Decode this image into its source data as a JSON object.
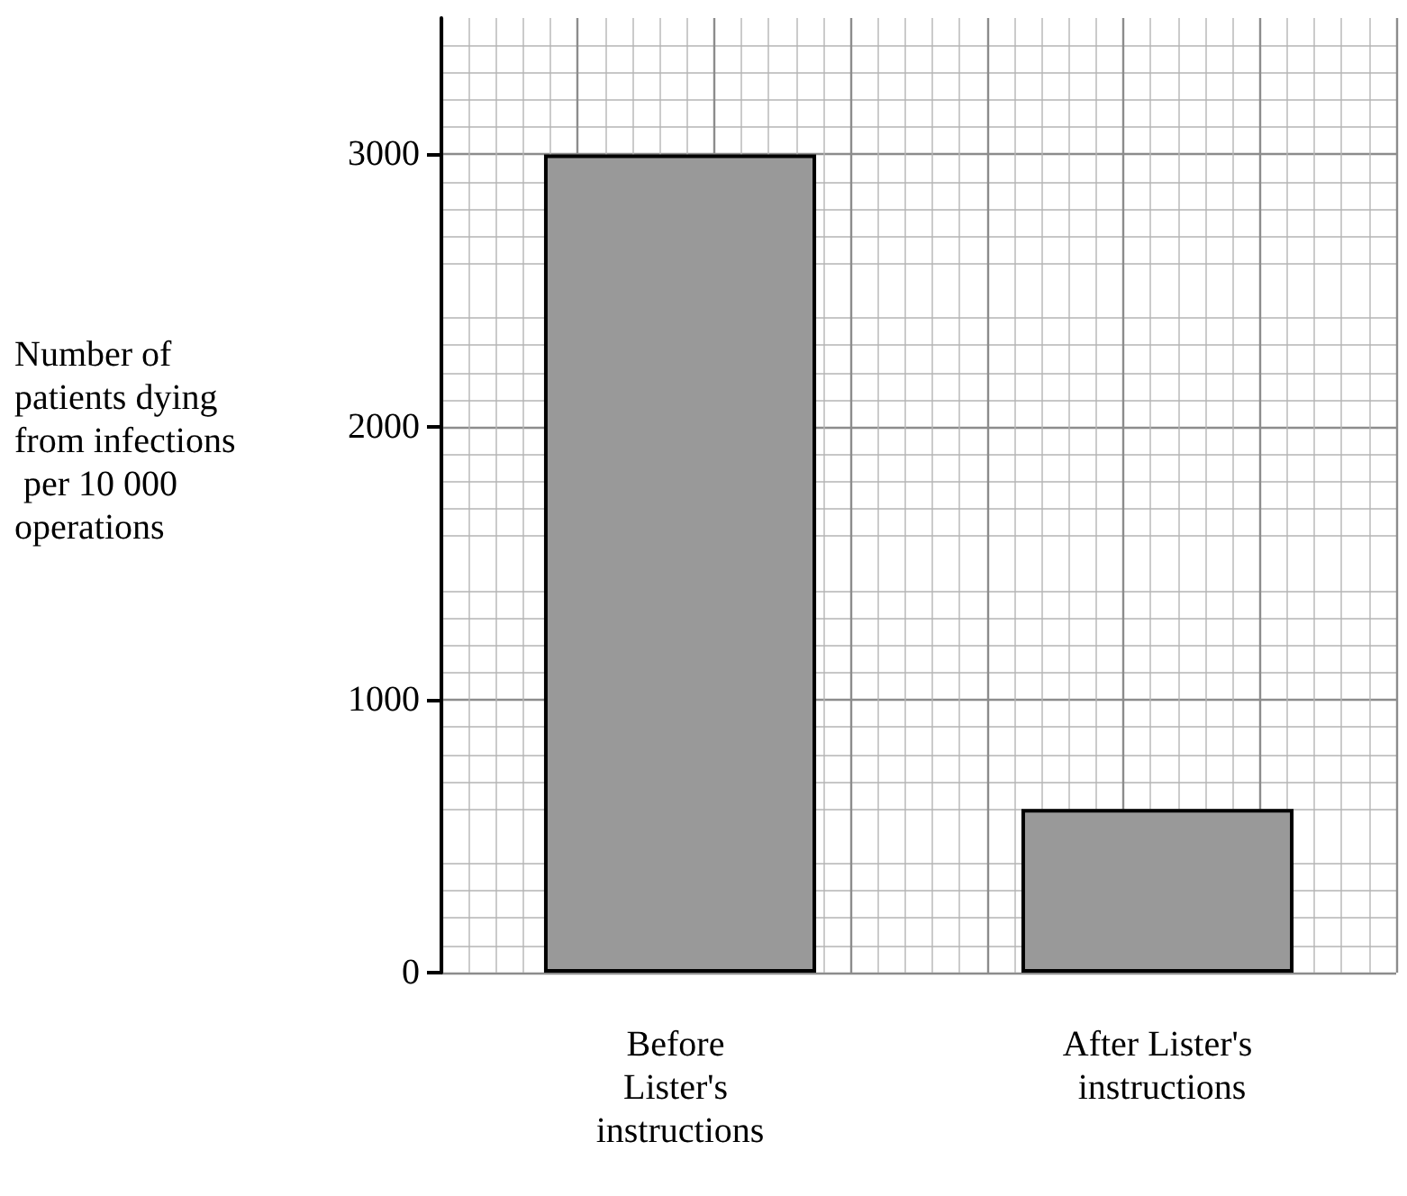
{
  "chart_data": {
    "type": "bar",
    "ylabel": "Number of patients dying from infections per 10 000 operations",
    "categories": [
      "Before Lister's instructions",
      "After Lister's instructions"
    ],
    "values": [
      3000,
      600
    ],
    "color": "#999999",
    "ylim": [
      0,
      3500
    ],
    "yticks": [
      0,
      1000,
      2000,
      3000
    ],
    "grid": true
  }
}
